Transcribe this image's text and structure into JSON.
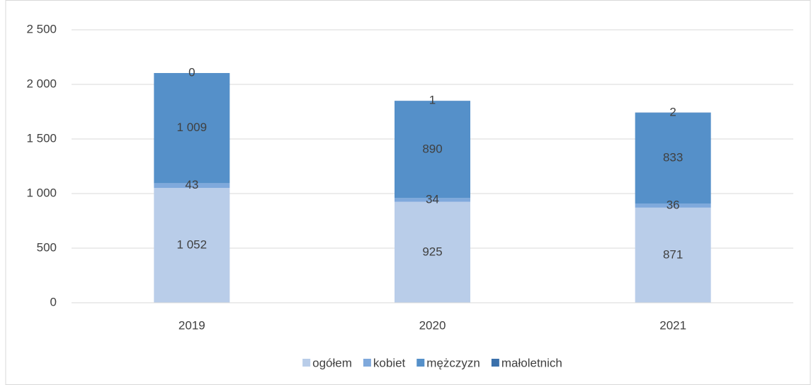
{
  "chart_data": {
    "type": "stacked_bar",
    "categories": [
      "2019",
      "2020",
      "2021"
    ],
    "series": [
      {
        "name": "ogółem",
        "color": "#b9cde9",
        "values": [
          1052,
          925,
          871
        ],
        "value_labels": [
          "1 052",
          "925",
          "871"
        ]
      },
      {
        "name": "kobiet",
        "color": "#7fa9dc",
        "values": [
          43,
          34,
          36
        ]
      },
      {
        "name": "mężczyzn",
        "color": "#5590c9",
        "values": [
          1009,
          890,
          833
        ],
        "value_labels": [
          "1 009",
          "890",
          "833"
        ]
      },
      {
        "name": "małoletnich",
        "color": "#3a70ab",
        "values": [
          0,
          1,
          2
        ]
      }
    ],
    "ylim": [
      0,
      2500
    ],
    "yticks": [
      0,
      500,
      {
        "value": 1000,
        "label": "1 000"
      },
      {
        "value": 1500,
        "label": "1 500"
      },
      {
        "value": 2000,
        "label": "2 000"
      },
      {
        "value": 2500,
        "label": "2 500"
      }
    ],
    "grid": true,
    "legend": "bottom"
  }
}
